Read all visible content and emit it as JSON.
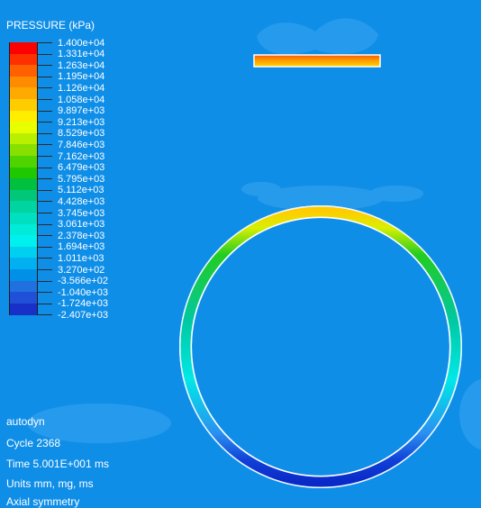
{
  "legend": {
    "title": "PRESSURE (kPa)",
    "labels": [
      "1.400e+04",
      "1.331e+04",
      "1.263e+04",
      "1.195e+04",
      "1.126e+04",
      "1.058e+04",
      "9.897e+03",
      "9.213e+03",
      "8.529e+03",
      "7.846e+03",
      "7.162e+03",
      "6.479e+03",
      "5.795e+03",
      "5.112e+03",
      "4.428e+03",
      "3.745e+03",
      "3.061e+03",
      "2.378e+03",
      "1.694e+03",
      "1.011e+03",
      "3.270e+02",
      "-3.566e+02",
      "-1.040e+03",
      "-1.724e+03",
      "-2.407e+03"
    ],
    "colors": [
      "#ff0000",
      "#ff3000",
      "#ff6000",
      "#ff8c00",
      "#ffaa00",
      "#ffcc00",
      "#ffee00",
      "#e8ff00",
      "#b8f000",
      "#88e000",
      "#50d400",
      "#20c800",
      "#00c040",
      "#00c878",
      "#00d4a0",
      "#00e0c0",
      "#00ecd8",
      "#00f0f0",
      "#00d0f0",
      "#00b0f0",
      "#0090e8",
      "#2070e0",
      "#2050d8",
      "#1830c8"
    ]
  },
  "info": {
    "solver": "autodyn",
    "cycle": "Cycle 2368",
    "time": "Time 5.001E+001 ms",
    "units": "Units mm, mg, ms",
    "symmetry": "Axial symmetry"
  },
  "scene": {
    "background_color": "#0f8ee8",
    "shadow_color": "#3aa6f0",
    "bar_colors": [
      "#ff6a00",
      "#ffd400"
    ],
    "ring_colors": [
      "#ffcc00",
      "#22cc22",
      "#00c8a0",
      "#00e8e8",
      "#1040d8"
    ]
  }
}
